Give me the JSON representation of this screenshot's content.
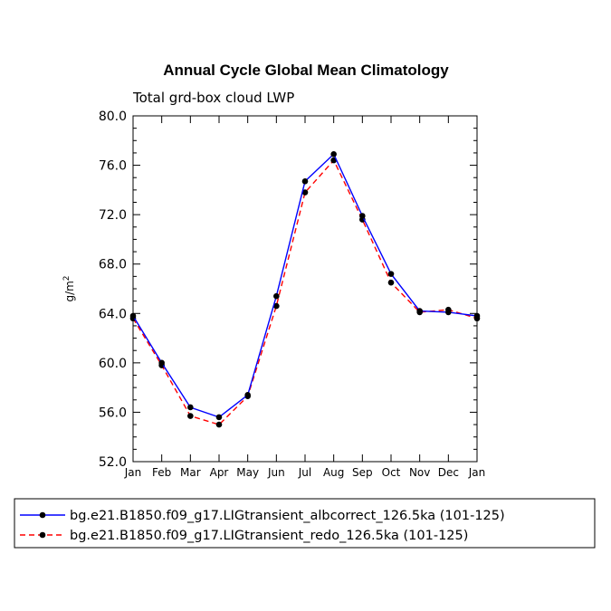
{
  "chart_data": {
    "type": "line",
    "title": "Annual Cycle Global Mean Climatology",
    "subtitle": "Total grd-box cloud LWP",
    "xlabel": "",
    "ylabel": "g/m",
    "ylabel_sup": "2",
    "categories": [
      "Jan",
      "Feb",
      "Mar",
      "Apr",
      "May",
      "Jun",
      "Jul",
      "Aug",
      "Sep",
      "Oct",
      "Nov",
      "Dec",
      "Jan"
    ],
    "ylim": [
      52.0,
      80.0
    ],
    "yticks": [
      "52.0",
      "56.0",
      "60.0",
      "64.0",
      "68.0",
      "72.0",
      "76.0",
      "80.0"
    ],
    "series": [
      {
        "name": "bg.e21.B1850.f09_g17.LIGtransient_albcorrect_126.5ka (101-125)",
        "color": "#0000ff",
        "dash": "solid",
        "values": [
          63.8,
          60.0,
          56.4,
          55.6,
          57.4,
          65.4,
          74.7,
          76.9,
          71.9,
          67.2,
          64.2,
          64.1,
          63.8
        ]
      },
      {
        "name": "bg.e21.B1850.f09_g17.LIGtransient_redo_126.5ka (101-125)",
        "color": "#ff0000",
        "dash": "dashed",
        "values": [
          63.6,
          59.8,
          55.7,
          55.0,
          57.3,
          64.6,
          73.8,
          76.4,
          71.6,
          66.5,
          64.1,
          64.3,
          63.6
        ]
      }
    ],
    "legend_position": "bottom"
  }
}
